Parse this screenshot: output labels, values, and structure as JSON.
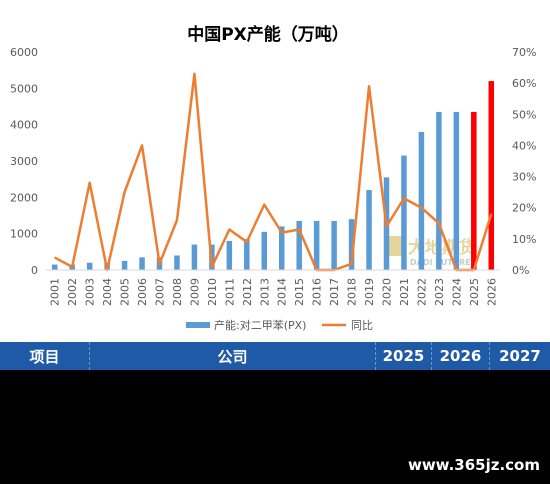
{
  "chart_data": {
    "type": "bar+line",
    "title": "中国PX产能（万吨）",
    "categories": [
      "2001",
      "2002",
      "2003",
      "2004",
      "2005",
      "2006",
      "2007",
      "2008",
      "2009",
      "2010",
      "2011",
      "2012",
      "2013",
      "2014",
      "2015",
      "2016",
      "2017",
      "2018",
      "2019",
      "2020",
      "2021",
      "2022",
      "2023",
      "2024",
      "2025",
      "2026"
    ],
    "series": [
      {
        "name": "产能:对二甲苯(PX)",
        "type": "bar",
        "axis": "left",
        "values": [
          150,
          150,
          200,
          200,
          250,
          350,
          350,
          400,
          700,
          700,
          800,
          850,
          1050,
          1200,
          1350,
          1350,
          1350,
          1400,
          2200,
          2550,
          3150,
          3800,
          4350,
          4350,
          4350,
          5200
        ]
      },
      {
        "name": "同比",
        "type": "line",
        "axis": "right",
        "values": [
          4,
          1,
          28,
          0,
          25,
          40,
          2,
          16,
          63,
          1,
          13,
          9,
          21,
          12,
          13,
          0,
          0,
          2,
          59,
          14,
          23,
          20,
          15,
          0,
          0,
          18
        ]
      }
    ],
    "highlight_categories": [
      "2025",
      "2026"
    ],
    "ylim_left": [
      0,
      6000
    ],
    "yticks_left": [
      "0",
      "1000",
      "2000",
      "3000",
      "4000",
      "5000",
      "6000"
    ],
    "ylim_right": [
      0,
      70
    ],
    "yticks_right": [
      "0%",
      "10%",
      "20%",
      "30%",
      "40%",
      "50%",
      "60%",
      "70%"
    ],
    "grid": false,
    "legend_position": "bottom",
    "colors": {
      "bar": "#5b9bd5",
      "bar_highlight": "#ff0000",
      "line": "#ed7d31"
    }
  },
  "watermark": {
    "name": "大地期货",
    "sub": "DADI FUTURES"
  },
  "table": {
    "headers": [
      "项目",
      "公司",
      "2025",
      "2026",
      "2027"
    ]
  },
  "site_mark": "www.365jz.com"
}
